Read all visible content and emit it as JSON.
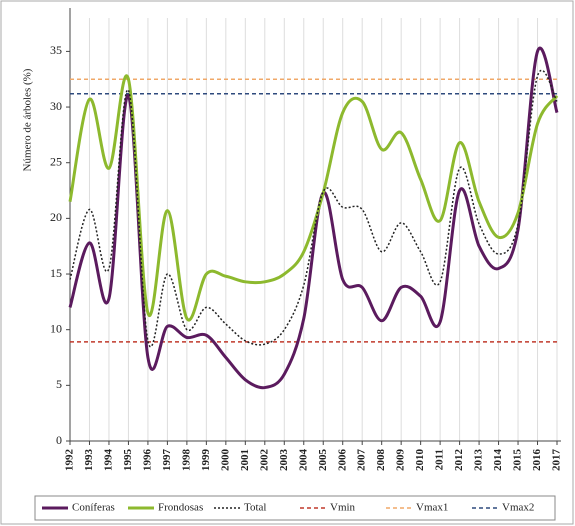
{
  "chart_data": {
    "type": "line",
    "y_axis_title": "Número de árboles (%)",
    "categories": [
      "1992",
      "1993",
      "1994",
      "1995",
      "1996",
      "1997",
      "1998",
      "1999",
      "2000",
      "2001",
      "2002",
      "2003",
      "2004",
      "2005",
      "2006",
      "2007",
      "2008",
      "2009",
      "2010",
      "2011",
      "2012",
      "2013",
      "2014",
      "2015",
      "2016",
      "2017"
    ],
    "series": [
      {
        "name": "Coníferas",
        "color": "#5b1b5e",
        "style": "solid",
        "values": [
          12,
          17.8,
          12.8,
          31,
          7.5,
          10.3,
          9.3,
          9.5,
          7.5,
          5.5,
          4.8,
          6,
          11,
          22.3,
          14.5,
          13.8,
          10.8,
          13.8,
          13,
          10.7,
          22.5,
          17.5,
          15.5,
          19,
          35,
          29.5
        ]
      },
      {
        "name": "Frondosas",
        "color": "#8db92e",
        "style": "solid",
        "values": [
          21.5,
          30.7,
          24.5,
          32.5,
          11.5,
          20.7,
          11,
          15,
          14.8,
          14.3,
          14.3,
          15,
          17,
          22.3,
          29.5,
          30.5,
          26.2,
          27.7,
          23.5,
          19.8,
          26.8,
          21.5,
          18.3,
          20.5,
          28.5,
          31
        ]
      },
      {
        "name": "Total",
        "color": "#222222",
        "style": "dotted",
        "values": [
          14.5,
          20.8,
          15.5,
          31.5,
          9,
          15,
          10,
          12,
          10.5,
          9,
          8.7,
          10,
          14,
          22.4,
          21,
          20.8,
          17,
          19.6,
          17,
          14.3,
          24.5,
          19.5,
          16.8,
          19.5,
          32.8,
          30.5
        ]
      }
    ],
    "reference_lines": [
      {
        "name": "Vmin",
        "color": "#c0392b",
        "value": 8.9
      },
      {
        "name": "Vmax1",
        "color": "#f0a868",
        "value": 32.5
      },
      {
        "name": "Vmax2",
        "color": "#2e4a7d",
        "value": 31.2
      }
    ],
    "ylim": [
      0,
      38
    ],
    "yticks": [
      0,
      5,
      10,
      15,
      20,
      25,
      30,
      35
    ],
    "grid": true
  }
}
